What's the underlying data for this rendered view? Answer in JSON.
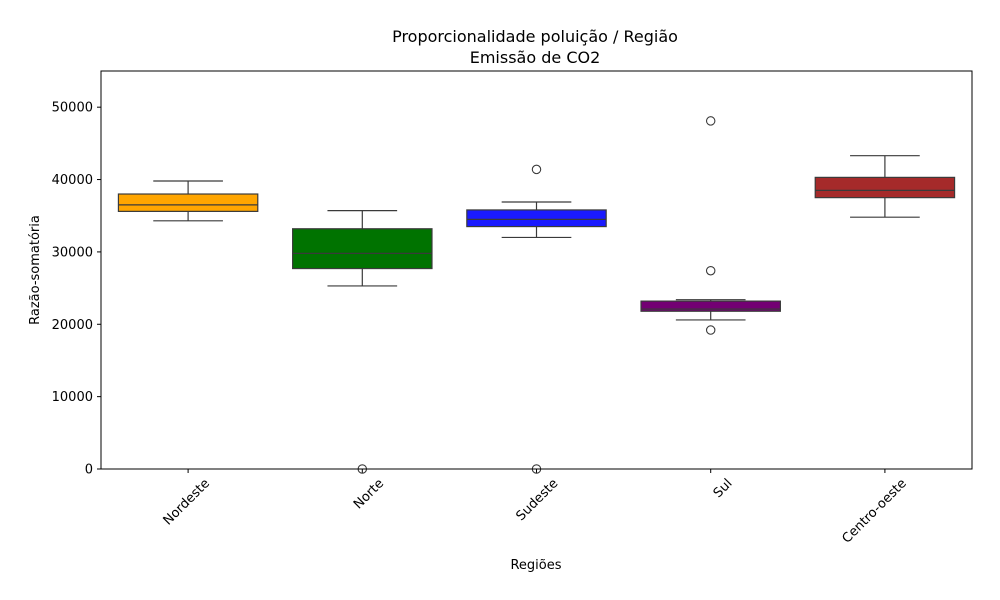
{
  "chart_data": {
    "type": "box",
    "title": [
      "Proporcionalidade poluição / Região",
      "Emissão de CO2"
    ],
    "xlabel": "Regiões",
    "ylabel": "Razão-somatória",
    "ylim": [
      0,
      55000
    ],
    "yticks": [
      0,
      10000,
      20000,
      30000,
      40000,
      50000
    ],
    "grid": false,
    "categories": [
      "Nordeste",
      "Norte",
      "Sudeste",
      "Sul",
      "Centro-oeste"
    ],
    "boxes": [
      {
        "category": "Nordeste",
        "color": "#ffa500",
        "whisker_low": 34300,
        "q1": 35600,
        "median": 36500,
        "q3": 38000,
        "whisker_high": 39800,
        "outliers": []
      },
      {
        "category": "Norte",
        "color": "#007300",
        "whisker_low": 25300,
        "q1": 27700,
        "median": 29800,
        "q3": 33200,
        "whisker_high": 35700,
        "outliers": [
          0
        ]
      },
      {
        "category": "Sudeste",
        "color": "#1a1aff",
        "whisker_low": 32000,
        "q1": 33500,
        "median": 34500,
        "q3": 35800,
        "whisker_high": 36900,
        "outliers": [
          0,
          41400
        ]
      },
      {
        "category": "Sul",
        "color": "#730073",
        "whisker_low": 20600,
        "q1": 21800,
        "median": 22100,
        "q3": 23200,
        "whisker_high": 23400,
        "outliers": [
          19200,
          27400,
          48100
        ]
      },
      {
        "category": "Centro-oeste",
        "color": "#a52a2a",
        "whisker_low": 34800,
        "q1": 37500,
        "median": 38500,
        "q3": 40300,
        "whisker_high": 43300,
        "outliers": []
      }
    ]
  }
}
